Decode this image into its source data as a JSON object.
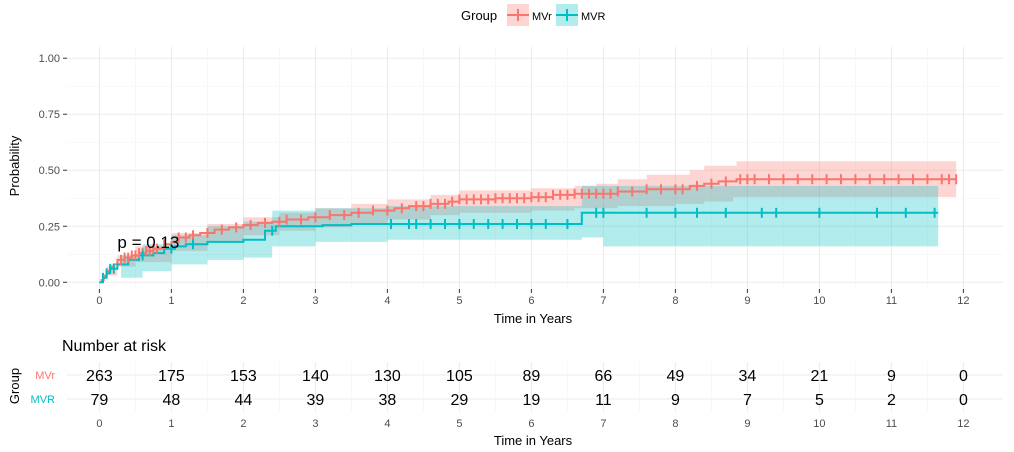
{
  "legend": {
    "title": "Group",
    "placement": "top",
    "items": [
      {
        "label": "MVr",
        "color": "#F8766D",
        "fill": "#F8766D"
      },
      {
        "label": "MVR",
        "color": "#00BFC4",
        "fill": "#00BFC4"
      }
    ]
  },
  "chart_data": [
    {
      "type": "line",
      "subtype": "cumulative-incidence step curve with confidence bands and censor marks",
      "xlabel": "Time in Years",
      "ylabel": "Probability",
      "xlim": [
        -0.45,
        12.55
      ],
      "ylim": [
        -0.03,
        1.05
      ],
      "xticks": [
        0,
        1,
        2,
        3,
        4,
        5,
        6,
        7,
        8,
        9,
        10,
        11,
        12
      ],
      "yticks": [
        0,
        0.25,
        0.5,
        0.75,
        1
      ],
      "ytick_labels": [
        "0.00",
        "0.25",
        "0.50",
        "0.75",
        "1.00"
      ],
      "grid": true,
      "annotation": {
        "text": "p = 0.13",
        "x": 0.25,
        "y": 0.18
      },
      "series": [
        {
          "name": "MVr",
          "color": "#F8766D",
          "steps": [
            [
              0,
              0
            ],
            [
              0.03,
              0.01
            ],
            [
              0.06,
              0.03
            ],
            [
              0.1,
              0.05
            ],
            [
              0.15,
              0.07
            ],
            [
              0.2,
              0.08
            ],
            [
              0.25,
              0.1
            ],
            [
              0.35,
              0.11
            ],
            [
              0.45,
              0.12
            ],
            [
              0.55,
              0.13
            ],
            [
              0.65,
              0.14
            ],
            [
              0.75,
              0.15
            ],
            [
              0.9,
              0.17
            ],
            [
              1.0,
              0.18
            ],
            [
              1.1,
              0.2
            ],
            [
              1.25,
              0.21
            ],
            [
              1.4,
              0.22
            ],
            [
              1.6,
              0.235
            ],
            [
              1.8,
              0.245
            ],
            [
              2.0,
              0.255
            ],
            [
              2.2,
              0.265
            ],
            [
              2.4,
              0.27
            ],
            [
              2.6,
              0.28
            ],
            [
              2.9,
              0.29
            ],
            [
              3.2,
              0.3
            ],
            [
              3.5,
              0.31
            ],
            [
              3.8,
              0.32
            ],
            [
              4.1,
              0.33
            ],
            [
              4.3,
              0.34
            ],
            [
              4.6,
              0.35
            ],
            [
              4.85,
              0.36
            ],
            [
              5.0,
              0.37
            ],
            [
              5.5,
              0.375
            ],
            [
              6.0,
              0.38
            ],
            [
              6.3,
              0.39
            ],
            [
              6.6,
              0.395
            ],
            [
              7.2,
              0.405
            ],
            [
              7.6,
              0.415
            ],
            [
              8.2,
              0.43
            ],
            [
              8.4,
              0.44
            ],
            [
              8.6,
              0.45
            ],
            [
              8.85,
              0.46
            ],
            [
              11.9,
              0.46
            ]
          ],
          "ci_lower": [
            [
              0,
              0
            ],
            [
              0.1,
              0.03
            ],
            [
              0.25,
              0.07
            ],
            [
              0.5,
              0.09
            ],
            [
              1.0,
              0.14
            ],
            [
              1.5,
              0.18
            ],
            [
              2.0,
              0.21
            ],
            [
              2.5,
              0.23
            ],
            [
              3.0,
              0.245
            ],
            [
              3.5,
              0.26
            ],
            [
              4.0,
              0.28
            ],
            [
              4.6,
              0.3
            ],
            [
              5.0,
              0.31
            ],
            [
              6.0,
              0.32
            ],
            [
              6.6,
              0.33
            ],
            [
              7.2,
              0.34
            ],
            [
              8.0,
              0.35
            ],
            [
              8.4,
              0.36
            ],
            [
              8.8,
              0.38
            ],
            [
              11.9,
              0.38
            ]
          ],
          "ci_upper": [
            [
              0,
              0
            ],
            [
              0.1,
              0.07
            ],
            [
              0.25,
              0.12
            ],
            [
              0.5,
              0.16
            ],
            [
              1.0,
              0.22
            ],
            [
              1.5,
              0.26
            ],
            [
              2.0,
              0.29
            ],
            [
              2.5,
              0.31
            ],
            [
              3.0,
              0.33
            ],
            [
              3.5,
              0.35
            ],
            [
              4.0,
              0.37
            ],
            [
              4.6,
              0.39
            ],
            [
              5.0,
              0.41
            ],
            [
              6.0,
              0.42
            ],
            [
              6.6,
              0.43
            ],
            [
              6.9,
              0.44
            ],
            [
              7.2,
              0.46
            ],
            [
              7.6,
              0.48
            ],
            [
              8.2,
              0.5
            ],
            [
              8.4,
              0.52
            ],
            [
              8.85,
              0.54
            ],
            [
              11.9,
              0.54
            ]
          ],
          "censor_times": [
            0.3,
            0.35,
            0.4,
            0.45,
            0.5,
            0.55,
            0.6,
            0.65,
            0.7,
            0.75,
            0.8,
            0.9,
            1.1,
            1.2,
            1.3,
            1.5,
            1.7,
            1.9,
            2.1,
            2.3,
            2.5,
            2.6,
            2.8,
            3.0,
            3.2,
            3.4,
            3.6,
            3.8,
            4.0,
            4.2,
            4.4,
            4.5,
            4.6,
            4.7,
            4.8,
            4.9,
            5.0,
            5.1,
            5.2,
            5.3,
            5.4,
            5.5,
            5.6,
            5.7,
            5.8,
            5.9,
            6.0,
            6.1,
            6.2,
            6.3,
            6.4,
            6.5,
            6.6,
            6.7,
            6.8,
            6.9,
            7.0,
            7.1,
            7.2,
            7.4,
            7.6,
            7.8,
            8.0,
            8.1,
            8.3,
            8.5,
            8.7,
            8.9,
            9.0,
            9.1,
            9.3,
            9.5,
            9.7,
            9.9,
            10.1,
            10.3,
            10.5,
            10.7,
            10.9,
            11.1,
            11.3,
            11.5,
            11.7,
            11.8,
            11.9
          ]
        },
        {
          "name": "MVR",
          "color": "#00BFC4",
          "steps": [
            [
              0,
              0
            ],
            [
              0.05,
              0.02
            ],
            [
              0.1,
              0.04
            ],
            [
              0.15,
              0.06
            ],
            [
              0.25,
              0.08
            ],
            [
              0.4,
              0.1
            ],
            [
              0.55,
              0.12
            ],
            [
              0.75,
              0.13
            ],
            [
              0.9,
              0.15
            ],
            [
              1.05,
              0.16
            ],
            [
              1.2,
              0.17
            ],
            [
              1.5,
              0.18
            ],
            [
              2.0,
              0.19
            ],
            [
              2.3,
              0.23
            ],
            [
              2.45,
              0.25
            ],
            [
              3.1,
              0.255
            ],
            [
              3.5,
              0.26
            ],
            [
              6.65,
              0.26
            ],
            [
              6.7,
              0.31
            ],
            [
              11.65,
              0.31
            ]
          ],
          "ci_lower": [
            [
              0,
              0
            ],
            [
              0.3,
              0.02
            ],
            [
              0.6,
              0.05
            ],
            [
              1.0,
              0.08
            ],
            [
              1.5,
              0.1
            ],
            [
              2.0,
              0.11
            ],
            [
              2.4,
              0.16
            ],
            [
              3.0,
              0.18
            ],
            [
              4.0,
              0.19
            ],
            [
              6.7,
              0.2
            ],
            [
              7.0,
              0.16
            ],
            [
              11.65,
              0.16
            ]
          ],
          "ci_upper": [
            [
              0,
              0
            ],
            [
              0.3,
              0.12
            ],
            [
              0.6,
              0.17
            ],
            [
              1.0,
              0.21
            ],
            [
              1.5,
              0.25
            ],
            [
              2.0,
              0.27
            ],
            [
              2.4,
              0.32
            ],
            [
              3.0,
              0.33
            ],
            [
              4.0,
              0.34
            ],
            [
              6.65,
              0.34
            ],
            [
              6.7,
              0.43
            ],
            [
              11.65,
              0.43
            ]
          ],
          "censor_times": [
            0.05,
            0.1,
            0.15,
            0.2,
            0.6,
            1.0,
            1.3,
            2.4,
            4.05,
            4.3,
            4.4,
            4.6,
            4.8,
            5.0,
            5.2,
            5.4,
            5.6,
            5.8,
            6.0,
            6.2,
            6.5,
            6.9,
            7.0,
            7.6,
            8.0,
            8.3,
            8.7,
            9.2,
            9.4,
            10.0,
            10.8,
            11.2,
            11.6
          ]
        }
      ]
    },
    {
      "type": "table",
      "title": "Number at risk",
      "ylabel": "Group",
      "xlabel": "Time in Years",
      "times": [
        0,
        1,
        2,
        3,
        4,
        5,
        6,
        7,
        8,
        9,
        10,
        11,
        12
      ],
      "rows": [
        {
          "name": "MVr",
          "color": "#F8766D",
          "values": [
            "263",
            "175",
            "153",
            "140",
            "130",
            "105",
            "89",
            "66",
            "49",
            "34",
            "21",
            "9",
            "0"
          ]
        },
        {
          "name": "MVR",
          "color": "#00BFC4",
          "values": [
            "79",
            "48",
            "44",
            "39",
            "38",
            "29",
            "19",
            "11",
            "9",
            "7",
            "5",
            "2",
            "0"
          ]
        }
      ]
    }
  ]
}
